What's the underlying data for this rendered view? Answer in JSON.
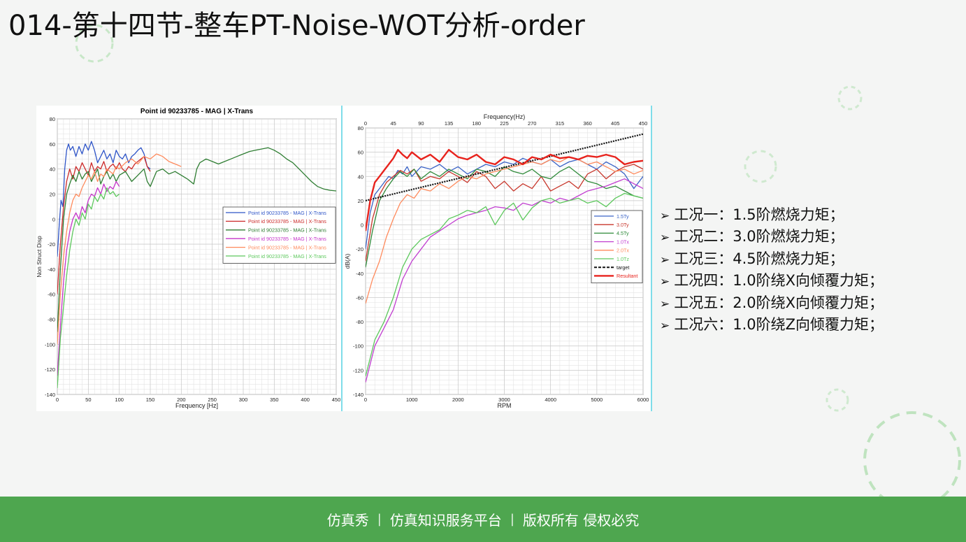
{
  "page": {
    "title": "014-第十四节-整车PT-Noise-WOT分析-order",
    "colors": {
      "footer": "#4ea64f",
      "accent_line": "#7fdde9"
    }
  },
  "bullets": [
    "工况一：1.5阶燃烧力矩；",
    "工况二：3.0阶燃烧力矩；",
    "工况三：4.5阶燃烧力矩；",
    "工况四：1.0阶绕X向倾覆力矩；",
    "工况五：2.0阶绕X向倾覆力矩；",
    "工况六：1.0阶绕Z向倾覆力矩；"
  ],
  "footer": {
    "brand": "仿真秀",
    "slogan": "仿真知识服务平台",
    "rights": "版权所有 侵权必究"
  },
  "chart_data": [
    {
      "type": "line",
      "title": "Point id 90233785 - MAG | X-Trans",
      "xlabel": "Frequency [Hz]",
      "ylabel": "Non Struct Disp",
      "xlim": [
        0,
        450
      ],
      "ylim": [
        -140,
        80
      ],
      "xticks": [
        0,
        50,
        100,
        150,
        200,
        250,
        300,
        350,
        400,
        450
      ],
      "yticks": [
        -140,
        -120,
        -100,
        -80,
        -60,
        -40,
        -20,
        0,
        20,
        40,
        60,
        80
      ],
      "grid": true,
      "legend_position": "middle-right",
      "series": [
        {
          "name": "Point id 90233785 - MAG | X-Trans",
          "color": "#2f55c8",
          "x": [
            0,
            3,
            6,
            9,
            12,
            15,
            18,
            21,
            25,
            30,
            35,
            40,
            45,
            50,
            55,
            60,
            65,
            70,
            75,
            80,
            85,
            90,
            95,
            100,
            105,
            110,
            115,
            120,
            125,
            130,
            135,
            140,
            145,
            150
          ],
          "y": [
            -30,
            -5,
            15,
            10,
            40,
            55,
            60,
            55,
            58,
            50,
            58,
            52,
            60,
            55,
            62,
            55,
            45,
            50,
            55,
            48,
            52,
            45,
            55,
            50,
            48,
            52,
            45,
            50,
            52,
            55,
            57,
            52,
            42,
            40
          ]
        },
        {
          "name": "Point id 90233785 - MAG | X-Trans",
          "color": "#cc2a2a",
          "x": [
            0,
            5,
            10,
            15,
            20,
            25,
            30,
            35,
            40,
            45,
            50,
            55,
            60,
            65,
            70,
            75,
            80,
            85,
            90,
            95,
            100,
            105,
            110,
            115,
            120,
            125,
            130,
            135,
            140,
            145,
            150
          ],
          "y": [
            -60,
            -20,
            10,
            30,
            40,
            32,
            42,
            38,
            45,
            40,
            35,
            45,
            38,
            42,
            40,
            46,
            38,
            42,
            44,
            40,
            45,
            40,
            38,
            42,
            40,
            44,
            46,
            48,
            50,
            42,
            38
          ]
        },
        {
          "name": "Point id 90233785 - MAG | X-Trans",
          "color": "#2e7d32",
          "x": [
            0,
            5,
            10,
            15,
            20,
            25,
            30,
            35,
            40,
            45,
            50,
            55,
            60,
            65,
            70,
            75,
            80,
            85,
            90,
            95,
            100,
            110,
            120,
            130,
            140,
            145,
            150,
            160,
            170,
            180,
            190,
            200,
            210,
            220,
            225,
            230,
            240,
            250,
            260,
            270,
            280,
            290,
            300,
            310,
            320,
            330,
            340,
            350,
            360,
            370,
            380,
            390,
            400,
            410,
            420,
            430,
            440,
            450
          ],
          "y": [
            -90,
            -40,
            0,
            20,
            28,
            35,
            30,
            38,
            32,
            36,
            38,
            30,
            35,
            40,
            28,
            34,
            38,
            32,
            36,
            30,
            35,
            38,
            30,
            35,
            40,
            30,
            26,
            38,
            40,
            36,
            38,
            35,
            32,
            28,
            40,
            45,
            48,
            46,
            44,
            46,
            48,
            50,
            52,
            54,
            55,
            56,
            57,
            55,
            52,
            48,
            45,
            40,
            35,
            30,
            26,
            24,
            23,
            22.5
          ]
        },
        {
          "name": "Point id 90233785 - MAG | X-Trans",
          "color": "#c534c9",
          "x": [
            0,
            5,
            10,
            15,
            20,
            25,
            30,
            35,
            40,
            45,
            50,
            55,
            60,
            65,
            70,
            75,
            80,
            85,
            90,
            95,
            100
          ],
          "y": [
            -125,
            -85,
            -50,
            -25,
            -10,
            0,
            5,
            0,
            10,
            5,
            15,
            20,
            18,
            25,
            20,
            28,
            22,
            26,
            24,
            30,
            26
          ]
        },
        {
          "name": "Point id 90233785 - MAG | X-Trans",
          "color": "#ff8a5c",
          "x": [
            0,
            5,
            10,
            15,
            20,
            25,
            30,
            35,
            40,
            45,
            50,
            55,
            60,
            65,
            70,
            75,
            80,
            85,
            90,
            95,
            100,
            110,
            120,
            130,
            140,
            150,
            160,
            170,
            180,
            190,
            200
          ],
          "y": [
            -100,
            -60,
            -30,
            -10,
            5,
            15,
            20,
            18,
            25,
            30,
            35,
            32,
            38,
            30,
            36,
            34,
            40,
            38,
            36,
            42,
            40,
            45,
            48,
            44,
            50,
            48,
            52,
            50,
            46,
            44,
            42
          ]
        },
        {
          "name": "Point id 90233785 - MAG | X-Trans",
          "color": "#5cc85c",
          "x": [
            0,
            5,
            10,
            15,
            20,
            25,
            30,
            35,
            40,
            45,
            50,
            55,
            60,
            65,
            70,
            75,
            80,
            85,
            90,
            95,
            100
          ],
          "y": [
            -135,
            -95,
            -70,
            -45,
            -25,
            -10,
            0,
            -5,
            5,
            0,
            12,
            8,
            18,
            14,
            20,
            16,
            25,
            20,
            22,
            18,
            20
          ]
        }
      ]
    },
    {
      "type": "line",
      "title": "",
      "x2label": "Frequency(Hz)",
      "xlabel": "RPM",
      "ylabel": "dB(A)",
      "xlim": [
        0,
        6000
      ],
      "x2lim": [
        0,
        450
      ],
      "ylim": [
        -140,
        80
      ],
      "xticks": [
        0,
        1000,
        2000,
        3000,
        4000,
        5000,
        6000
      ],
      "x2ticks": [
        0,
        45,
        90,
        135,
        180,
        225,
        270,
        315,
        360,
        405,
        450
      ],
      "yticks": [
        -140,
        -120,
        -100,
        -80,
        -60,
        -40,
        -20,
        0,
        20,
        40,
        60,
        80
      ],
      "grid": true,
      "legend_position": "bottom-right",
      "series": [
        {
          "name": "1.5Ty",
          "color": "#3a63c6",
          "x": [
            0,
            100,
            200,
            300,
            400,
            500,
            600,
            700,
            800,
            900,
            1000,
            1200,
            1400,
            1600,
            1800,
            2000,
            2200,
            2400,
            2600,
            2800,
            3000,
            3200,
            3400,
            3600,
            3800,
            4000,
            4200,
            4400,
            4600,
            4800,
            5000,
            5200,
            5400,
            5600,
            5800,
            6000
          ],
          "y": [
            -20,
            10,
            25,
            30,
            35,
            40,
            38,
            45,
            42,
            48,
            40,
            48,
            46,
            50,
            44,
            48,
            42,
            46,
            50,
            48,
            52,
            50,
            55,
            52,
            50,
            54,
            48,
            52,
            54,
            50,
            46,
            52,
            48,
            42,
            30,
            40
          ]
        },
        {
          "name": "3.0Ty",
          "color": "#c8372c",
          "x": [
            0,
            150,
            300,
            450,
            600,
            750,
            900,
            1050,
            1200,
            1400,
            1600,
            1800,
            2000,
            2200,
            2400,
            2600,
            2800,
            3000,
            3200,
            3400,
            3600,
            3800,
            4000,
            4200,
            4400,
            4600,
            4800,
            5000,
            5200,
            5400,
            5600,
            5800,
            6000
          ],
          "y": [
            -30,
            5,
            25,
            35,
            40,
            45,
            42,
            46,
            36,
            40,
            38,
            44,
            40,
            35,
            44,
            40,
            30,
            36,
            28,
            34,
            30,
            40,
            28,
            32,
            36,
            30,
            42,
            46,
            38,
            44,
            48,
            50,
            46
          ]
        },
        {
          "name": "4.5Ty",
          "color": "#2f8a3a",
          "x": [
            0,
            150,
            300,
            450,
            600,
            750,
            900,
            1050,
            1200,
            1400,
            1600,
            1800,
            2000,
            2200,
            2400,
            2600,
            2800,
            3000,
            3200,
            3400,
            3600,
            3800,
            4000,
            4200,
            4400,
            4600,
            4800,
            5000,
            5200,
            5400,
            5600,
            5800,
            6000
          ],
          "y": [
            -35,
            -5,
            20,
            30,
            38,
            44,
            40,
            46,
            38,
            44,
            40,
            46,
            42,
            38,
            46,
            44,
            40,
            48,
            44,
            42,
            46,
            40,
            38,
            44,
            48,
            42,
            36,
            34,
            30,
            32,
            28,
            24,
            22
          ]
        },
        {
          "name": "1.0Tx",
          "color": "#c13ed0",
          "x": [
            0,
            200,
            400,
            600,
            800,
            1000,
            1200,
            1400,
            1600,
            1800,
            2000,
            2200,
            2400,
            2600,
            2800,
            3000,
            3200,
            3400,
            3600,
            3800,
            4000,
            4200,
            4400,
            4600,
            4800,
            5000,
            5200,
            5400,
            5600,
            5800,
            6000
          ],
          "y": [
            -130,
            -100,
            -85,
            -70,
            -45,
            -30,
            -20,
            -10,
            -5,
            0,
            5,
            8,
            10,
            12,
            15,
            14,
            12,
            18,
            16,
            20,
            18,
            22,
            20,
            24,
            28,
            30,
            32,
            35,
            38,
            34,
            30
          ]
        },
        {
          "name": "2.0Tx",
          "color": "#ff8a5c",
          "x": [
            0,
            150,
            300,
            450,
            600,
            750,
            900,
            1050,
            1200,
            1400,
            1600,
            1800,
            2000,
            2200,
            2400,
            2600,
            2800,
            3000,
            3200,
            3400,
            3600,
            3800,
            4000,
            4200,
            4400,
            4600,
            4800,
            5000,
            5200,
            5400,
            5600,
            5800,
            6000
          ],
          "y": [
            -65,
            -45,
            -30,
            -10,
            5,
            18,
            25,
            22,
            30,
            28,
            34,
            30,
            36,
            40,
            38,
            42,
            44,
            46,
            48,
            50,
            52,
            50,
            54,
            52,
            56,
            54,
            50,
            52,
            48,
            44,
            46,
            42,
            45
          ]
        },
        {
          "name": "1.0Tz",
          "color": "#5cc85c",
          "x": [
            0,
            200,
            400,
            600,
            800,
            1000,
            1200,
            1400,
            1600,
            1800,
            2000,
            2200,
            2400,
            2600,
            2800,
            3000,
            3200,
            3400,
            3600,
            3800,
            4000,
            4200,
            4400,
            4600,
            4800,
            5000,
            5200,
            5400,
            5600,
            5800,
            6000
          ],
          "y": [
            -125,
            -95,
            -80,
            -60,
            -35,
            -20,
            -12,
            -8,
            -4,
            5,
            8,
            12,
            10,
            15,
            0,
            12,
            18,
            4,
            14,
            20,
            22,
            18,
            20,
            22,
            18,
            20,
            15,
            22,
            26,
            24,
            22
          ]
        },
        {
          "name": "target",
          "color": "#111111",
          "dash": true,
          "x": [
            0,
            6000
          ],
          "y": [
            20,
            75
          ]
        },
        {
          "name": "Resultant",
          "color": "#e8231d",
          "bold": true,
          "x": [
            0,
            100,
            200,
            300,
            400,
            500,
            600,
            700,
            800,
            900,
            1000,
            1200,
            1400,
            1600,
            1800,
            2000,
            2200,
            2400,
            2600,
            2800,
            3000,
            3200,
            3400,
            3600,
            3800,
            4000,
            4200,
            4400,
            4600,
            4800,
            5000,
            5200,
            5400,
            5600,
            5800,
            6000
          ],
          "y": [
            -5,
            20,
            35,
            40,
            45,
            50,
            55,
            62,
            58,
            55,
            60,
            54,
            58,
            52,
            62,
            56,
            54,
            58,
            52,
            50,
            56,
            54,
            50,
            56,
            54,
            58,
            55,
            56,
            54,
            57,
            56,
            58,
            56,
            50,
            52,
            53
          ]
        }
      ]
    }
  ]
}
